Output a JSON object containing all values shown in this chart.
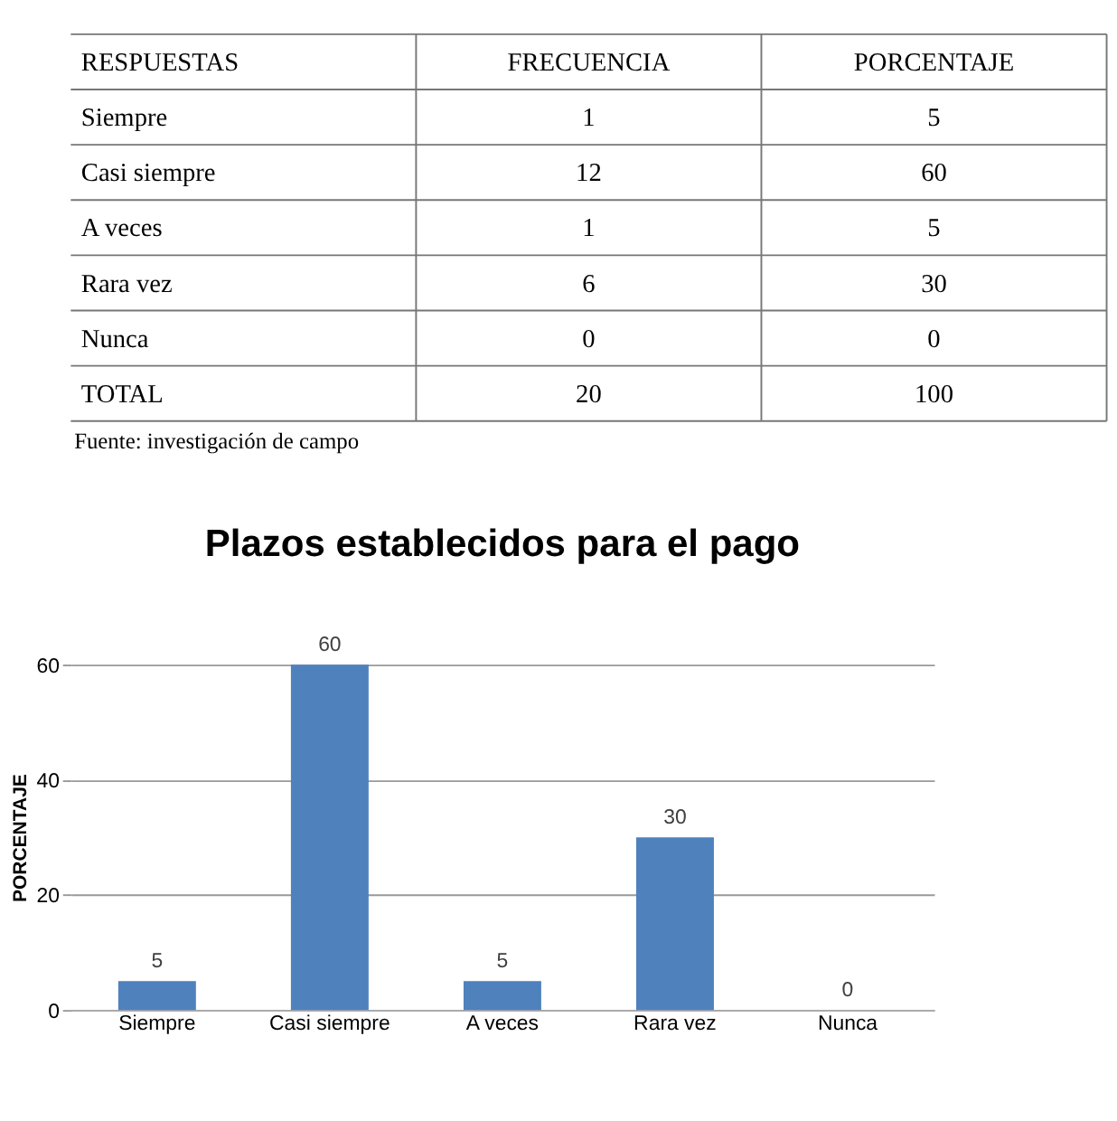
{
  "chart_data": [
    {
      "type": "other",
      "annotations": [
        "RESPUESTAS",
        "FRECUENCIA",
        "PORCENTAJE",
        "Siempre",
        "1",
        "5",
        "Casi siempre",
        "12",
        "60",
        "A veces",
        "1",
        "5",
        "Rara vez",
        "6",
        "30",
        "Nunca",
        "0",
        "0",
        "TOTAL",
        "20",
        "100",
        "Fuente: investigación de campo"
      ]
    },
    {
      "type": "bar",
      "title": "Plazos establecidos para el pago",
      "ylabel": "PORCENTAJE",
      "categories": [
        "Siempre",
        "Casi siempre",
        "A veces",
        "Rara vez",
        "Nunca"
      ],
      "values": [
        5,
        60,
        5,
        30,
        0
      ],
      "color": "#4f81bd",
      "ylim": [
        0,
        60
      ],
      "yticks": [
        0,
        20,
        40,
        60
      ],
      "grid": "y",
      "data_labels": true
    }
  ]
}
